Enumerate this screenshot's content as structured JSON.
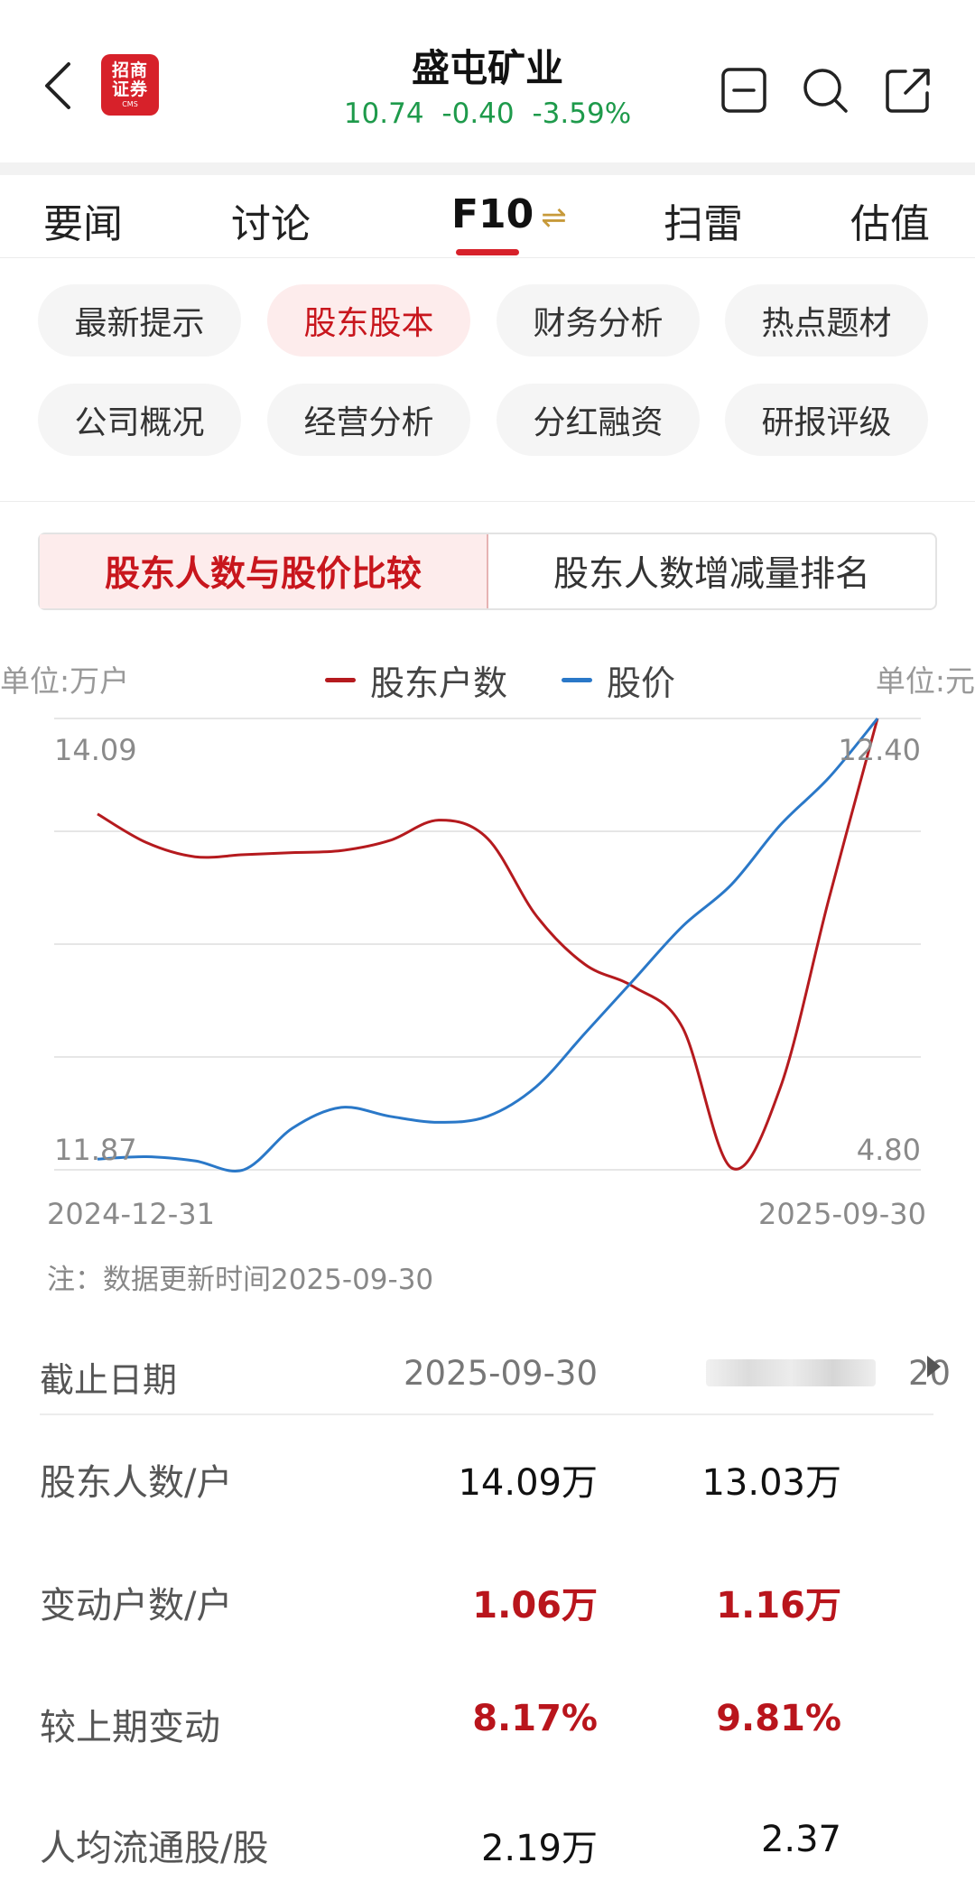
{
  "header": {
    "back_icon": "chevron-left-icon",
    "logo": {
      "line1": "招商",
      "line2": "证券",
      "line3": "CMS"
    },
    "stock_name": "盛屯矿业",
    "price": "10.74",
    "change": "-0.40",
    "change_pct": "-3.59%",
    "quote_color": "#1e9a4b",
    "icons": [
      "minus-square-icon",
      "search-icon",
      "share-icon"
    ]
  },
  "main_tabs": [
    {
      "label": "要闻"
    },
    {
      "label": "讨论"
    },
    {
      "label": "F10",
      "active": true,
      "icon": "⇌"
    },
    {
      "label": "扫雷"
    },
    {
      "label": "估值"
    }
  ],
  "chips": [
    {
      "label": "最新提示"
    },
    {
      "label": "股东股本",
      "active": true
    },
    {
      "label": "财务分析"
    },
    {
      "label": "热点题材"
    },
    {
      "label": "公司概况"
    },
    {
      "label": "经营分析"
    },
    {
      "label": "分红融资"
    },
    {
      "label": "研报评级"
    }
  ],
  "segments": [
    {
      "label": "股东人数与股价比较",
      "active": true
    },
    {
      "label": "股东人数增减量排名"
    }
  ],
  "chart_data": {
    "type": "line",
    "unit_left": "单位:万户",
    "unit_right": "单位:元",
    "x_start_label": "2024-12-31",
    "x_end_label": "2025-09-30",
    "left_axis": {
      "max_label": "14.09",
      "min_label": "11.87",
      "range": [
        11.87,
        14.09
      ]
    },
    "right_axis": {
      "max_label": "12.40",
      "min_label": "4.80",
      "range": [
        4.8,
        12.4
      ]
    },
    "grid": true,
    "series": [
      {
        "name": "股东户数",
        "color": "#b51a1e",
        "axis": "left",
        "values": [
          13.62,
          13.48,
          13.41,
          13.42,
          13.43,
          13.44,
          13.49,
          13.59,
          13.5,
          13.12,
          12.88,
          12.77,
          12.57,
          11.88,
          12.27,
          13.2,
          14.09
        ]
      },
      {
        "name": "股价",
        "color": "#2a78c8",
        "axis": "right",
        "values": [
          4.98,
          5.02,
          4.95,
          4.8,
          5.5,
          5.85,
          5.7,
          5.6,
          5.7,
          6.2,
          7.1,
          8.0,
          8.9,
          9.6,
          10.6,
          11.4,
          12.4
        ]
      }
    ]
  },
  "note": "注：数据更新时间2025-09-30",
  "table": {
    "header_label": "截止日期",
    "dates": [
      "2025-09-30",
      "",
      "20"
    ],
    "rows": [
      {
        "label": "股东人数/户",
        "v1": "14.09万",
        "v2": "13.03万",
        "highlight": false
      },
      {
        "label": "变动户数/户",
        "v1": "1.06万",
        "v2": "1.16万",
        "highlight": true
      },
      {
        "label": "较上期变动",
        "v1": "8.17%",
        "v2": "9.81%",
        "highlight": true
      },
      {
        "label": "人均流通股/股",
        "v1": "2.19万",
        "v2": "2.37",
        "highlight": false
      }
    ]
  }
}
